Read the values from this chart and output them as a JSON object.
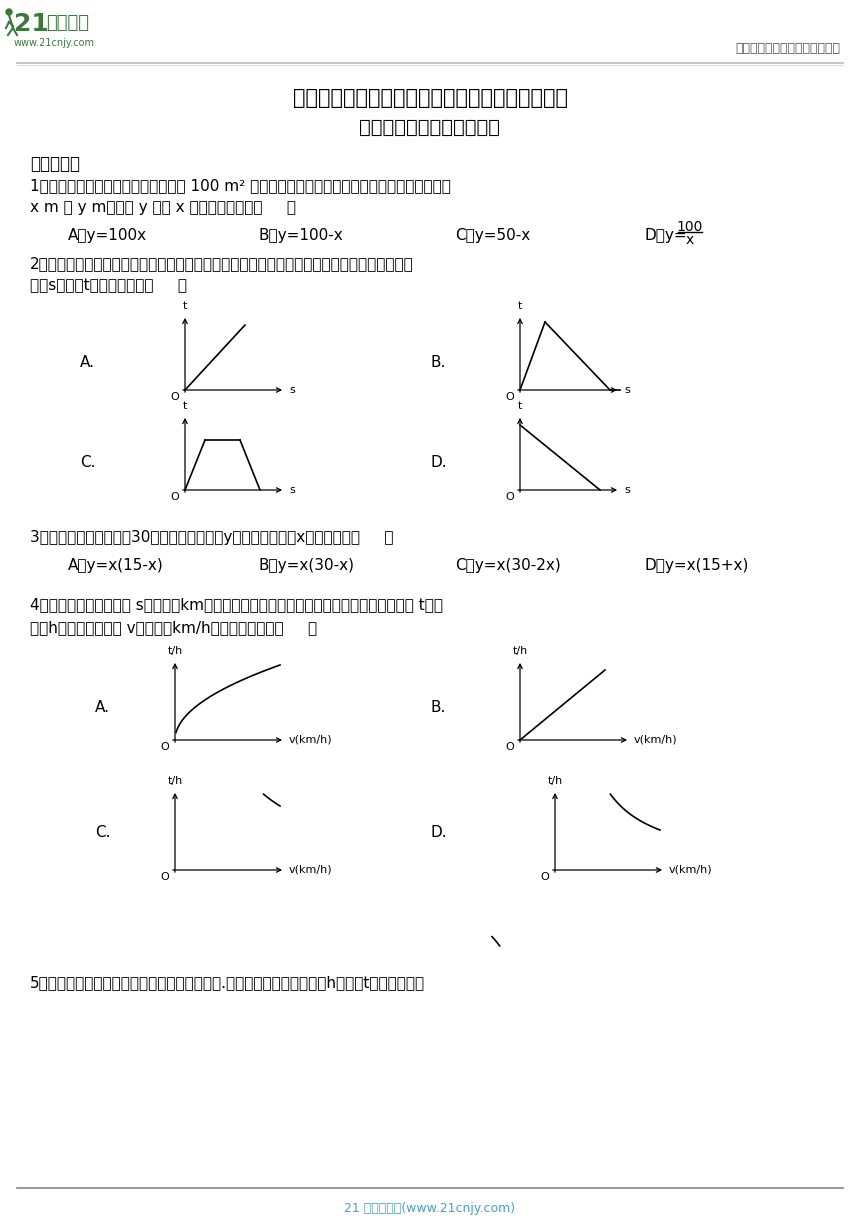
{
  "title1": "北师大版七年级数学下册：第三章变量之间的关系",
  "title2": "单元测试卷（含答案解析）",
  "section1": "一、选择题",
  "q1_text1": "1．某中学要在校园内划出一块面积是 100 m² 的矩形土地做花圃，设这个矩形相邻两边长分别为",
  "q1_text2": "x m 和 y m，那么 y 关于 x 的函数表达式为（     ）",
  "q1_A": "A．y=100x",
  "q1_B": "B．y=100-x",
  "q1_C": "C．y=50-x",
  "q1_D": "D．y=",
  "q1_D_frac_num": "100",
  "q1_D_frac_den": "x",
  "q2_text1": "2．跳伞运动员从高空跳下，打开降落伞，最后安全着地，在这个过程中，跳伞运动员到地面的",
  "q2_text2": "距离s与时间t的大致图象是（     ）",
  "q3_text1": "3．一个长方形的周长为30，则长方形的面积y与长方形一边长x的关系式为（     ）",
  "q3_A": "A．y=x(15-x)",
  "q3_B": "B．y=x(30-x)",
  "q3_C": "C．y=x(30-2x)",
  "q3_D": "D．y=x(15+x)",
  "q4_text1": "4．已知甲、乙两地相距 s（单位：km），汽车从甲地匀速行驶到乙地，则汽车行驶的时间 t（单",
  "q4_text2": "位：h）关于行驶速度 v（单位：km/h）的函数图象是（     ）",
  "q5_text1": "5．匀速地向一个容器内注水，最后把容器注满.在注水过程中，水面高度h随时间t的变化规律如",
  "logo_text1": "21",
  "logo_text2": "世纪教育",
  "logo_url": "www.21cnjy.com",
  "header_right": "中小学教育资源及组卷应用平台",
  "footer_text": "21 世纪教育网(www.21cnjy.com)",
  "bg_color": "#ffffff",
  "text_color": "#000000",
  "green_color": "#3a7a3a",
  "footer_color": "#4aa0c0"
}
